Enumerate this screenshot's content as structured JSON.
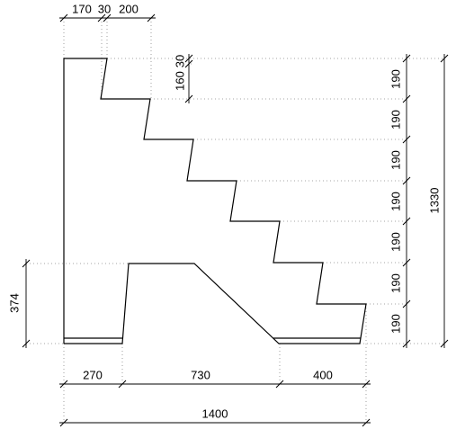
{
  "dimensions": {
    "top": [
      170,
      30,
      200
    ],
    "riser_top": [
      160,
      30
    ],
    "right_steps": [
      190,
      190,
      190,
      190,
      190,
      190,
      190
    ],
    "right_total": 1330,
    "left": 374,
    "bottom": [
      270,
      730,
      400
    ],
    "bottom_total": 1400
  }
}
